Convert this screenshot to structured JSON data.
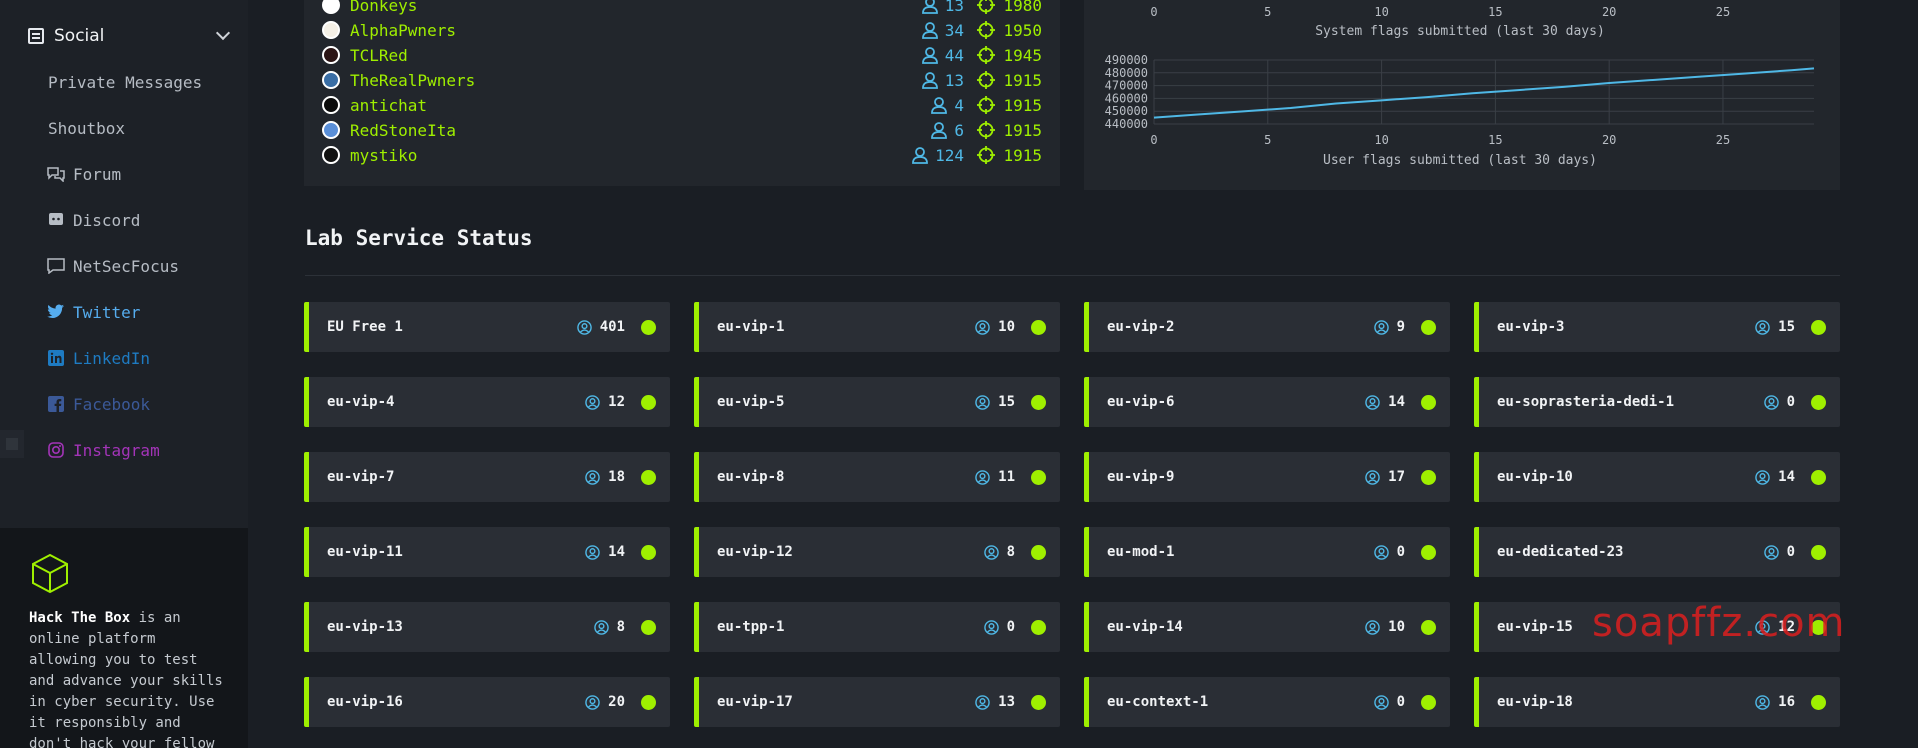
{
  "sidebar": {
    "section_label": "Social",
    "items": [
      {
        "label": "Private Messages",
        "icon": "none",
        "color": "#b6bcc4"
      },
      {
        "label": "Shoutbox",
        "icon": "none",
        "color": "#b6bcc4"
      },
      {
        "label": "Forum",
        "icon": "forum-icon",
        "color": "#b6bcc4"
      },
      {
        "label": "Discord",
        "icon": "discord-icon",
        "color": "#b6bcc4"
      },
      {
        "label": "NetSecFocus",
        "icon": "chat-icon",
        "color": "#b6bcc4"
      },
      {
        "label": "Twitter",
        "icon": "twitter-icon",
        "color": "#55acee"
      },
      {
        "label": "LinkedIn",
        "icon": "linkedin-icon",
        "color": "#1e7bc2"
      },
      {
        "label": "Facebook",
        "icon": "facebook-icon",
        "color": "#3b5998"
      },
      {
        "label": "Instagram",
        "icon": "instagram-icon",
        "color": "#a334b8"
      }
    ],
    "about": {
      "brand": "Hack The Box",
      "text": " is an online platform allowing you to test and advance your skills in cyber security. Use it responsibly and don't hack your fellow members..."
    }
  },
  "teams": [
    {
      "name": "Donkeys",
      "members": "13",
      "points": "1980"
    },
    {
      "name": "AlphaPwners",
      "members": "34",
      "points": "1950"
    },
    {
      "name": "TCLRed",
      "members": "44",
      "points": "1945"
    },
    {
      "name": "TheRealPwners",
      "members": "13",
      "points": "1915"
    },
    {
      "name": "antichat",
      "members": "4",
      "points": "1915"
    },
    {
      "name": "RedStoneIta",
      "members": "6",
      "points": "1915"
    },
    {
      "name": "mystiko",
      "members": "124",
      "points": "1915"
    }
  ],
  "charts": {
    "system": {
      "caption": "System flags submitted (last 30 days)",
      "x_ticks": [
        "0",
        "5",
        "10",
        "15",
        "20",
        "25"
      ]
    },
    "user": {
      "caption": "User flags submitted (last 30 days)",
      "x_ticks": [
        "0",
        "5",
        "10",
        "15",
        "20",
        "25"
      ],
      "y_ticks": [
        "490000",
        "480000",
        "470000",
        "460000",
        "450000",
        "440000"
      ]
    }
  },
  "chart_data": {
    "type": "line",
    "title": "User flags submitted (last 30 days)",
    "xlabel": "",
    "ylabel": "",
    "xlim": [
      0,
      29
    ],
    "ylim": [
      440000,
      490000
    ],
    "grid": true,
    "x": [
      0,
      2,
      4,
      6,
      8,
      10,
      12,
      14,
      16,
      18,
      20,
      22,
      24,
      26,
      28,
      29
    ],
    "series": [
      {
        "values": [
          445000,
          447500,
          450000,
          452500,
          456000,
          458500,
          461000,
          464000,
          466500,
          469000,
          472000,
          474500,
          477000,
          479500,
          482000,
          483500
        ]
      }
    ]
  },
  "lab": {
    "title": "Lab Service Status",
    "servers": [
      {
        "name": "EU Free 1",
        "users": "401"
      },
      {
        "name": "eu-vip-1",
        "users": "10"
      },
      {
        "name": "eu-vip-2",
        "users": "9"
      },
      {
        "name": "eu-vip-3",
        "users": "15"
      },
      {
        "name": "eu-vip-4",
        "users": "12"
      },
      {
        "name": "eu-vip-5",
        "users": "15"
      },
      {
        "name": "eu-vip-6",
        "users": "14"
      },
      {
        "name": "eu-soprasteria-dedi-1",
        "users": "0"
      },
      {
        "name": "eu-vip-7",
        "users": "18"
      },
      {
        "name": "eu-vip-8",
        "users": "11"
      },
      {
        "name": "eu-vip-9",
        "users": "17"
      },
      {
        "name": "eu-vip-10",
        "users": "14"
      },
      {
        "name": "eu-vip-11",
        "users": "14"
      },
      {
        "name": "eu-vip-12",
        "users": "8"
      },
      {
        "name": "eu-mod-1",
        "users": "0"
      },
      {
        "name": "eu-dedicated-23",
        "users": "0"
      },
      {
        "name": "eu-vip-13",
        "users": "8"
      },
      {
        "name": "eu-tpp-1",
        "users": "0"
      },
      {
        "name": "eu-vip-14",
        "users": "10"
      },
      {
        "name": "eu-vip-15",
        "users": "12"
      },
      {
        "name": "eu-vip-16",
        "users": "20"
      },
      {
        "name": "eu-vip-17",
        "users": "13"
      },
      {
        "name": "eu-context-1",
        "users": "0"
      },
      {
        "name": "eu-vip-18",
        "users": "16"
      }
    ]
  },
  "watermark": "soapffz.com",
  "colors": {
    "accent": "#9fef00",
    "blue": "#4fb8e6"
  }
}
